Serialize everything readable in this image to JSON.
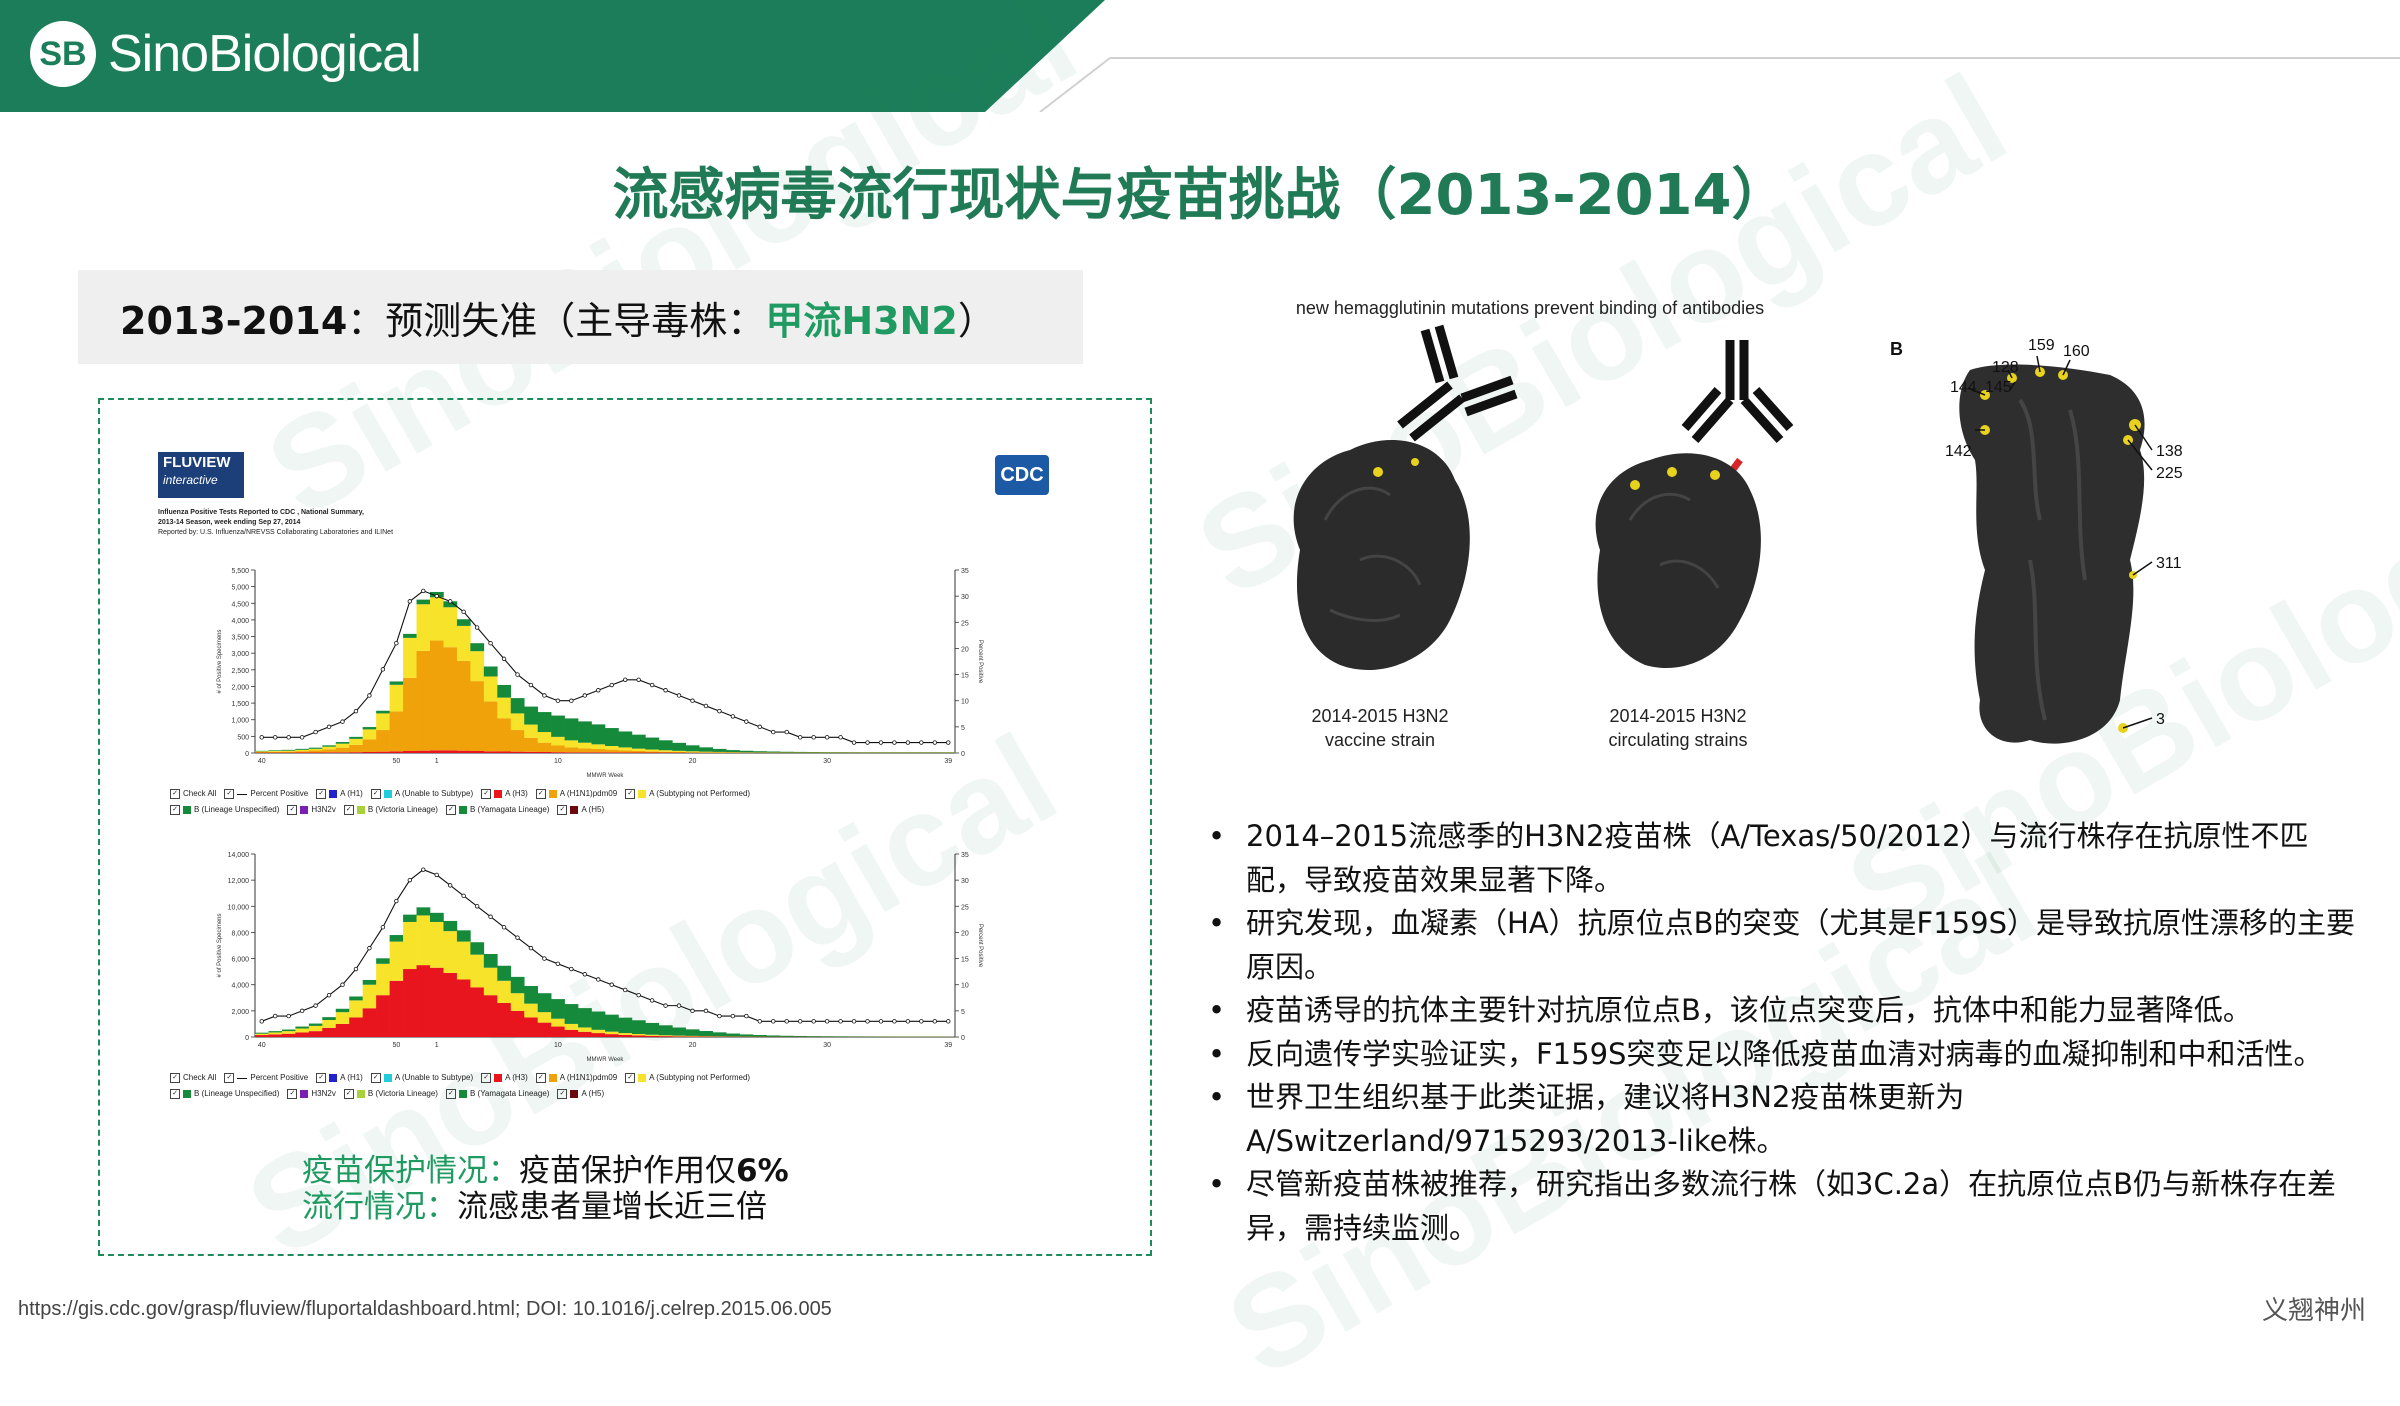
{
  "brand": {
    "logo_mark": "SB",
    "logo_text": "SinoBiological",
    "watermark_text": "SinoBiological",
    "color_primary": "#1f7a55"
  },
  "title": "流感病毒流行现状与疫苗挑战（2013-2014）",
  "subhead": {
    "year": "2013-2014",
    "mid": "：预测失准（主导毒株：",
    "strain": "甲流H3N2",
    "end": "）"
  },
  "fluview": {
    "logo_line1": "FLUVIEW",
    "logo_line2": "interactive",
    "cdc_logo": "CDC",
    "caption_lines": [
      "Influenza Positive Tests Reported to CDC , National Summary,",
      "2013-14 Season, week ending Sep 27, 2014",
      "Reported by: U.S. Influenza/NREVSS Collaborating Laboratories and ILINet"
    ],
    "x_axis_title": "MMWR Week",
    "y_axis_left": "# of Positive Specimens",
    "y_axis_right": "Percent Positive",
    "legend_row1": [
      "Check All",
      "Percent Positive",
      "A (H1)",
      "A (Unable to Subtype)",
      "A (H3)",
      "A (H1N1)pdm09",
      "A (Subtyping not Performed)"
    ],
    "legend_row2": [
      "B (Lineage Unspecified)",
      "H3N2v",
      "B (Victoria Lineage)",
      "B (Yamagata Lineage)",
      "A (H5)"
    ],
    "legend_colors": [
      "#2222cc",
      "#22ccdd",
      "#e8141e",
      "#f0a20a",
      "#f7e32a",
      "#7a1fb5",
      "#a8d23a",
      "#158a3a",
      "#6b0a0a",
      "#888888"
    ]
  },
  "chart_data": [
    {
      "type": "bar",
      "title": "",
      "xlabel": "MMWR Week",
      "ylabel": "# of Positive Specimens",
      "ylabel_right": "Percent Positive",
      "x_ticks": [
        "40",
        "50",
        "1",
        "10",
        "20",
        "30",
        "39"
      ],
      "ylim": [
        0,
        5500
      ],
      "y_ticks": [
        "0",
        "500",
        "1,000",
        "1,500",
        "2,000",
        "2,500",
        "3,000",
        "3,500",
        "4,000",
        "4,500",
        "5,000",
        "5,500"
      ],
      "ylim_right": [
        0,
        35
      ],
      "y_ticks_right": [
        "0",
        "5",
        "10",
        "15",
        "20",
        "25",
        "30",
        "35"
      ],
      "categories": [
        "40",
        "41",
        "42",
        "43",
        "44",
        "45",
        "46",
        "47",
        "48",
        "49",
        "50",
        "51",
        "52",
        "1",
        "2",
        "3",
        "4",
        "5",
        "6",
        "7",
        "8",
        "9",
        "10",
        "11",
        "12",
        "13",
        "14",
        "15",
        "16",
        "17",
        "18",
        "19",
        "20",
        "21",
        "22",
        "23",
        "24",
        "25",
        "26",
        "27",
        "28",
        "29",
        "30",
        "31",
        "32",
        "33",
        "34",
        "35",
        "36",
        "37",
        "38",
        "39"
      ],
      "series": [
        {
          "name": "A (H3)",
          "values": [
            10,
            10,
            10,
            15,
            15,
            20,
            20,
            25,
            30,
            40,
            50,
            60,
            70,
            80,
            80,
            70,
            60,
            50,
            45,
            40,
            35,
            30,
            25,
            20,
            20,
            20,
            20,
            18,
            16,
            14,
            12,
            10,
            8,
            6,
            5,
            4,
            4,
            4,
            3,
            3,
            3,
            3,
            3,
            3,
            3,
            3,
            3,
            3,
            3,
            3,
            3,
            3
          ]
        },
        {
          "name": "A (H1N1)pdm09",
          "values": [
            20,
            25,
            30,
            40,
            60,
            90,
            140,
            220,
            380,
            650,
            1200,
            2200,
            3000,
            3300,
            3100,
            2700,
            2100,
            1500,
            1000,
            650,
            420,
            280,
            200,
            150,
            120,
            100,
            80,
            60,
            45,
            35,
            25,
            20,
            15,
            12,
            10,
            8,
            6,
            5,
            5,
            4,
            4,
            4,
            4,
            4,
            4,
            4,
            4,
            4,
            4,
            4,
            4,
            4
          ]
        },
        {
          "name": "A (Subtyping not Performed)",
          "values": [
            20,
            25,
            30,
            40,
            50,
            80,
            120,
            180,
            300,
            500,
            800,
            1200,
            1400,
            1300,
            1200,
            1050,
            900,
            750,
            620,
            500,
            400,
            320,
            260,
            210,
            170,
            140,
            110,
            90,
            70,
            55,
            45,
            35,
            28,
            22,
            18,
            15,
            12,
            10,
            9,
            8,
            8,
            8,
            8,
            8,
            8,
            8,
            8,
            8,
            8,
            8,
            8,
            8
          ]
        },
        {
          "name": "B (Lineage Unspecified)",
          "values": [
            15,
            20,
            25,
            30,
            35,
            40,
            50,
            60,
            70,
            80,
            100,
            120,
            140,
            160,
            180,
            200,
            240,
            300,
            380,
            460,
            540,
            600,
            640,
            660,
            640,
            600,
            540,
            480,
            420,
            360,
            300,
            240,
            180,
            130,
            90,
            60,
            45,
            35,
            28,
            22,
            18,
            15,
            13,
            12,
            11,
            10,
            10,
            10,
            10,
            10,
            10,
            10
          ]
        }
      ],
      "percent_positive": [
        3,
        3,
        3,
        3,
        4,
        5,
        6,
        8,
        11,
        16,
        21,
        29,
        31,
        30,
        29,
        27,
        24,
        21,
        18,
        15,
        13,
        11,
        10,
        10,
        11,
        12,
        13,
        14,
        14,
        13,
        12,
        11,
        10,
        9,
        8,
        7,
        6,
        5,
        4,
        4,
        3,
        3,
        3,
        3,
        2,
        2,
        2,
        2,
        2,
        2,
        2,
        2
      ]
    },
    {
      "type": "bar",
      "title": "",
      "xlabel": "MMWR Week",
      "ylabel": "# of Positive Specimens",
      "ylabel_right": "Percent Positive",
      "x_ticks": [
        "40",
        "50",
        "1",
        "10",
        "20",
        "30",
        "39"
      ],
      "ylim": [
        0,
        14000
      ],
      "y_ticks": [
        "0",
        "2,000",
        "4,000",
        "6,000",
        "8,000",
        "10,000",
        "12,000",
        "14,000"
      ],
      "ylim_right": [
        0,
        35
      ],
      "y_ticks_right": [
        "0",
        "5",
        "10",
        "15",
        "20",
        "25",
        "30",
        "35"
      ],
      "categories": [
        "40",
        "41",
        "42",
        "43",
        "44",
        "45",
        "46",
        "47",
        "48",
        "49",
        "50",
        "51",
        "52",
        "1",
        "2",
        "3",
        "4",
        "5",
        "6",
        "7",
        "8",
        "9",
        "10",
        "11",
        "12",
        "13",
        "14",
        "15",
        "16",
        "17",
        "18",
        "19",
        "20",
        "21",
        "22",
        "23",
        "24",
        "25",
        "26",
        "27",
        "28",
        "29",
        "30",
        "31",
        "32",
        "33",
        "34",
        "35",
        "36",
        "37",
        "38",
        "39"
      ],
      "series": [
        {
          "name": "A (H3)",
          "values": [
            150,
            200,
            250,
            350,
            450,
            700,
            1000,
            1500,
            2200,
            3200,
            4300,
            5200,
            5500,
            5300,
            4900,
            4400,
            3800,
            3200,
            2600,
            2000,
            1500,
            1100,
            800,
            550,
            400,
            300,
            220,
            160,
            120,
            90,
            70,
            55,
            45,
            35,
            30,
            25,
            20,
            18,
            15,
            13,
            12,
            11,
            10,
            10,
            10,
            10,
            10,
            10,
            10,
            10,
            10,
            10
          ]
        },
        {
          "name": "A (Subtyping not Performed)",
          "values": [
            100,
            150,
            200,
            300,
            400,
            600,
            900,
            1300,
            1800,
            2400,
            3000,
            3600,
            3800,
            3500,
            3200,
            2900,
            2500,
            2100,
            1700,
            1350,
            1050,
            800,
            600,
            450,
            330,
            250,
            190,
            140,
            110,
            85,
            65,
            50,
            40,
            32,
            26,
            21,
            18,
            15,
            13,
            12,
            11,
            10,
            10,
            10,
            10,
            10,
            10,
            10,
            10,
            10,
            10,
            10
          ]
        },
        {
          "name": "B (Lineage Unspecified)",
          "values": [
            80,
            100,
            120,
            150,
            180,
            220,
            260,
            300,
            360,
            420,
            500,
            560,
            620,
            700,
            780,
            860,
            950,
            1050,
            1150,
            1250,
            1350,
            1450,
            1500,
            1520,
            1480,
            1400,
            1300,
            1180,
            1050,
            900,
            760,
            620,
            500,
            390,
            300,
            220,
            160,
            120,
            90,
            70,
            55,
            45,
            38,
            32,
            28,
            25,
            22,
            20,
            18,
            17,
            16,
            15
          ]
        }
      ],
      "percent_positive": [
        3,
        4,
        4,
        5,
        6,
        8,
        10,
        13,
        17,
        21,
        26,
        30,
        32,
        31,
        29,
        27,
        25,
        23,
        21,
        19,
        17,
        15,
        14,
        13,
        12,
        11,
        10,
        9,
        8,
        7,
        6,
        6,
        5,
        5,
        4,
        4,
        4,
        3,
        3,
        3,
        3,
        3,
        3,
        3,
        3,
        3,
        3,
        3,
        3,
        3,
        3,
        3
      ]
    }
  ],
  "info": {
    "line1_label": "疫苗保护情况：",
    "line1_text": "疫苗保护作用仅",
    "line1_value": "6%",
    "line2_label": "流行情况：",
    "line2_text": "流感患者量增长近三倍"
  },
  "figure": {
    "top_caption": "new hemagglutinin mutations prevent binding of antibodies",
    "left_caption_1": "2014-2015 H3N2",
    "left_caption_2": "vaccine strain",
    "mid_caption_1": "2014-2015 H3N2",
    "mid_caption_2": "circulating strains",
    "panel_label": "B",
    "site_labels": [
      "159",
      "160",
      "128",
      "144",
      "145",
      "142",
      "138",
      "225",
      "311",
      "3"
    ]
  },
  "bullets": [
    "2014–2015流感季的H3N2疫苗株（A/Texas/50/2012）与流行株存在抗原性不匹配，导致疫苗效果显著下降。",
    "研究发现，血凝素（HA）抗原位点B的突变（尤其是F159S）是导致抗原性漂移的主要原因。",
    "疫苗诱导的抗体主要针对抗原位点B，该位点突变后，抗体中和能力显著降低。",
    "反向遗传学实验证实，F159S突变足以降低疫苗血清对病毒的血凝抑制和中和活性。",
    "世界卫生组织基于此类证据，建议将H3N2疫苗株更新为A/Switzerland/9715293/2013-like株。",
    "尽管新疫苗株被推荐，研究指出多数流行株（如3C.2a）在抗原位点B仍与新株存在差异，需持续监测。"
  ],
  "footer": {
    "source": "https://gis.cdc.gov/grasp/fluview/fluportaldashboard.html; DOI: 10.1016/j.celrep.2015.06.005",
    "signature": "义翘神州"
  }
}
